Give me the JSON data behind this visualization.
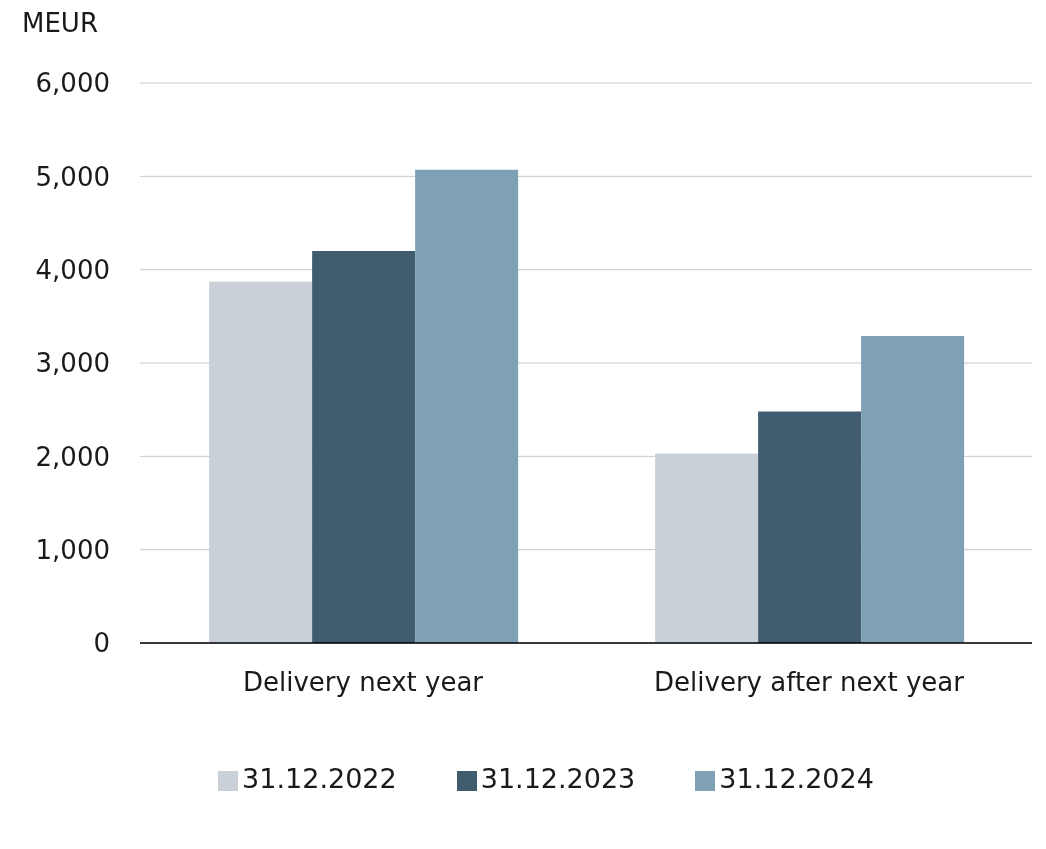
{
  "chart_data": {
    "type": "bar",
    "ylabel": "MEUR",
    "categories": [
      "Delivery next year",
      "Delivery after next year"
    ],
    "series": [
      {
        "name": "31.12.2022",
        "color": "#c9d0d7",
        "values": [
          3870,
          2030
        ]
      },
      {
        "name": "31.12.2023",
        "color": "#405c6e",
        "values": [
          4200,
          2480
        ]
      },
      {
        "name": "31.12.2024",
        "color": "#7ea1b5",
        "values": [
          5070,
          3290
        ]
      }
    ],
    "ylim": [
      0,
      6000
    ],
    "yticks": [
      {
        "value": 0,
        "label": "0"
      },
      {
        "value": 1000,
        "label": "1,000"
      },
      {
        "value": 2000,
        "label": "2,000"
      },
      {
        "value": 3000,
        "label": "3,000"
      },
      {
        "value": 4000,
        "label": "4,000"
      },
      {
        "value": 5000,
        "label": "5,000"
      },
      {
        "value": 6000,
        "label": "6,000"
      }
    ],
    "grid": "y",
    "legend": "bottom"
  }
}
